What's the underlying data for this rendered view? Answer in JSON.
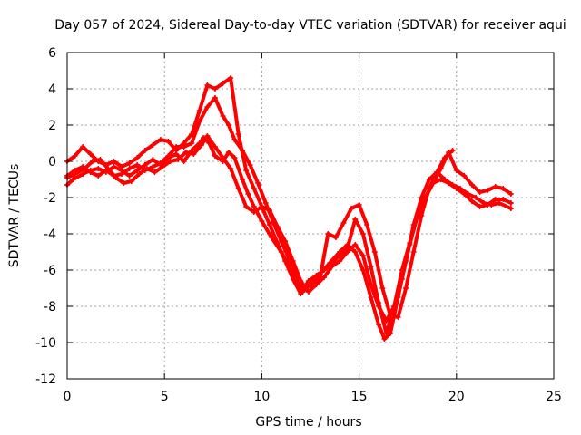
{
  "chart_data": {
    "type": "line",
    "title": "Day 057 of 2024, Sidereal Day-to-day VTEC variation (SDTVAR) for receiver aqui",
    "xlabel": "GPS time / hours",
    "ylabel": "SDTVAR / TECUs",
    "xlim": [
      0,
      25
    ],
    "ylim": [
      -12,
      6
    ],
    "xticks": [
      0,
      5,
      10,
      15,
      20,
      25
    ],
    "yticks": [
      -12,
      -10,
      -8,
      -6,
      -4,
      -2,
      0,
      2,
      4,
      6
    ],
    "grid": true,
    "marker": "+",
    "color": "#ff0000",
    "series": [
      {
        "name": "series-1",
        "x": [
          0.0,
          0.3,
          0.8,
          1.2,
          1.6,
          2.0,
          2.4,
          2.8,
          3.2,
          3.6,
          4.0,
          4.4,
          4.8,
          5.2,
          5.6,
          6.0,
          6.4,
          6.8,
          7.0,
          7.3,
          7.6,
          8.0,
          8.3,
          8.6,
          9.0,
          9.3,
          9.6,
          10.0,
          10.5,
          11.0,
          11.4,
          11.8,
          12.1,
          12.5,
          13.0,
          13.5,
          14.0,
          14.4,
          14.8,
          15.2,
          15.6,
          16.0,
          16.3,
          16.6,
          17.0,
          17.4,
          17.8,
          18.2,
          18.6,
          19.0,
          19.4,
          19.8,
          20.2,
          20.6,
          21.0,
          21.4,
          21.8,
          22.2,
          22.8
        ],
        "y": [
          -1.3,
          -1.0,
          -0.7,
          -0.5,
          -0.4,
          -0.6,
          -0.3,
          -0.5,
          -0.8,
          -0.5,
          -0.2,
          0.1,
          -0.2,
          0.2,
          0.4,
          0.0,
          0.6,
          1.0,
          1.3,
          1.0,
          0.3,
          0.0,
          0.5,
          0.2,
          -1.0,
          -1.8,
          -2.5,
          -3.3,
          -4.2,
          -5.0,
          -5.8,
          -6.5,
          -7.2,
          -6.8,
          -6.2,
          -5.6,
          -5.0,
          -4.6,
          -5.0,
          -6.0,
          -7.5,
          -9.0,
          -9.8,
          -9.5,
          -7.5,
          -5.5,
          -3.5,
          -2.0,
          -1.0,
          -0.6,
          -1.0,
          -1.3,
          -1.5,
          -1.8,
          -2.0,
          -2.3,
          -2.4,
          -2.3,
          -2.6
        ]
      },
      {
        "name": "series-2",
        "x": [
          0.0,
          0.4,
          0.9,
          1.3,
          1.7,
          2.1,
          2.5,
          2.9,
          3.3,
          3.7,
          4.1,
          4.5,
          4.9,
          5.3,
          5.7,
          6.1,
          6.5,
          6.9,
          7.2,
          7.6,
          8.0,
          8.4,
          8.8,
          9.2,
          9.6,
          10.0,
          10.4,
          10.8,
          11.2,
          11.6,
          12.0,
          12.4,
          12.8,
          13.2,
          13.6,
          14.0,
          14.4,
          14.8,
          15.2,
          15.6,
          16.0,
          16.4,
          16.8,
          17.2,
          17.6,
          18.0,
          18.4,
          18.8,
          19.2,
          19.6,
          20.0,
          20.4,
          20.8,
          21.2,
          21.6,
          22.0,
          22.4,
          22.8
        ],
        "y": [
          -0.9,
          -0.7,
          -0.4,
          0.0,
          0.1,
          -0.4,
          -0.9,
          -1.2,
          -1.1,
          -0.7,
          -0.4,
          -0.6,
          -0.3,
          0.0,
          0.1,
          0.5,
          0.4,
          0.9,
          1.4,
          0.8,
          0.2,
          -0.4,
          -1.5,
          -2.5,
          -2.8,
          -2.5,
          -2.7,
          -3.6,
          -4.4,
          -5.5,
          -6.6,
          -7.2,
          -6.8,
          -6.4,
          -5.8,
          -5.5,
          -5.0,
          -4.6,
          -5.2,
          -6.8,
          -8.0,
          -8.8,
          -8.0,
          -6.5,
          -4.6,
          -3.0,
          -2.0,
          -1.2,
          -1.0,
          -1.2,
          -1.5,
          -1.8,
          -2.2,
          -2.5,
          -2.4,
          -2.1,
          -2.1,
          -2.3
        ]
      },
      {
        "name": "series-3",
        "x": [
          0.0,
          0.4,
          0.8,
          1.2,
          1.6,
          2.0,
          2.4,
          2.8,
          3.2,
          3.6,
          4.0,
          4.4,
          4.8,
          5.2,
          5.6,
          6.0,
          6.4,
          6.8,
          7.2,
          7.6,
          8.0,
          8.4,
          8.8,
          9.2,
          9.6,
          10.0,
          10.4,
          10.8,
          11.2,
          11.6,
          12.0,
          12.4,
          12.8,
          13.2,
          13.6,
          14.0,
          14.4,
          14.8,
          15.2,
          15.6,
          16.0,
          16.4,
          16.8,
          17.2,
          17.6,
          18.0,
          18.4,
          18.8,
          19.2,
          19.6,
          20.0,
          20.4,
          20.8,
          21.2,
          21.6,
          22.0,
          22.4,
          22.8
        ],
        "y": [
          0.0,
          0.3,
          0.8,
          0.4,
          0.0,
          -0.2,
          0.0,
          -0.3,
          -0.1,
          0.2,
          0.6,
          0.9,
          1.2,
          1.1,
          0.6,
          1.0,
          1.5,
          2.8,
          4.2,
          4.0,
          4.3,
          4.6,
          1.5,
          -0.5,
          -1.5,
          -2.5,
          -3.5,
          -4.5,
          -5.5,
          -6.5,
          -7.3,
          -6.6,
          -6.3,
          -6.0,
          -5.6,
          -5.2,
          -4.8,
          -3.2,
          -4.0,
          -5.8,
          -7.8,
          -9.5,
          -8.0,
          -6.0,
          -4.5,
          -3.0,
          -2.0,
          -1.2,
          -0.4,
          0.5,
          -0.5,
          -0.8,
          -1.3,
          -1.7,
          -1.6,
          -1.4,
          -1.5,
          -1.8
        ]
      },
      {
        "name": "series-4",
        "x": [
          0.0,
          0.4,
          0.8,
          1.2,
          1.6,
          2.0,
          2.4,
          2.8,
          3.2,
          3.6,
          4.0,
          4.4,
          4.8,
          5.2,
          5.6,
          6.0,
          6.4,
          6.8,
          7.2,
          7.6,
          8.0,
          8.3,
          8.6,
          9.0,
          9.4,
          9.8,
          10.2,
          10.6,
          11.0,
          11.4,
          11.8,
          12.2,
          12.6,
          13.0,
          13.4,
          13.8,
          14.2,
          14.6,
          15.0,
          15.4,
          15.8,
          16.2,
          16.6,
          17.0,
          17.4,
          17.8,
          18.2,
          18.6,
          19.0,
          19.4,
          19.8
        ],
        "y": [
          -0.8,
          -0.5,
          -0.3,
          -0.6,
          -0.8,
          -0.5,
          -0.8,
          -0.7,
          -0.4,
          -0.2,
          -0.5,
          -0.3,
          -0.1,
          0.3,
          0.8,
          0.8,
          1.0,
          2.2,
          3.0,
          3.5,
          2.5,
          2.0,
          1.2,
          0.6,
          -0.2,
          -1.2,
          -2.3,
          -3.4,
          -4.4,
          -5.4,
          -6.3,
          -7.0,
          -6.8,
          -6.4,
          -4.0,
          -4.2,
          -3.4,
          -2.6,
          -2.4,
          -3.5,
          -5.0,
          -7.0,
          -8.5,
          -8.6,
          -7.0,
          -5.0,
          -3.0,
          -1.5,
          -0.6,
          0.2,
          0.6
        ]
      }
    ]
  }
}
